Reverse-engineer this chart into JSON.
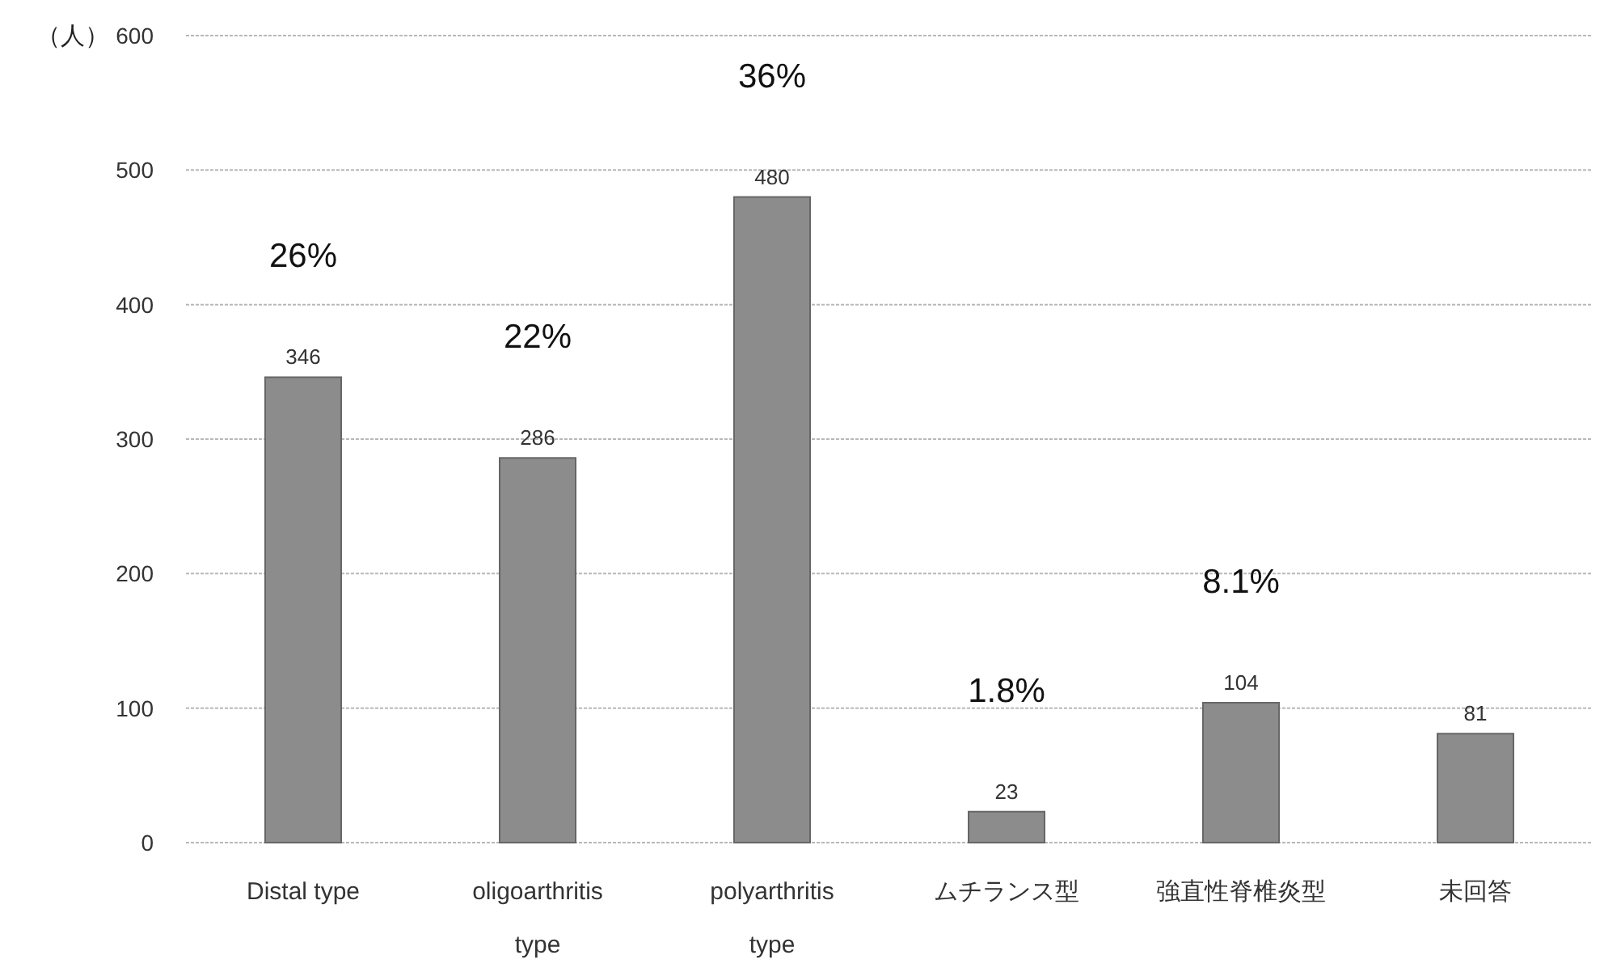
{
  "chart_data": {
    "type": "bar",
    "ylabel": "（人）",
    "categories": [
      "Distal type",
      "oligoarthritis type",
      "polyarthritis type",
      "ムチランス型",
      "強直性脊椎炎型",
      "未回答"
    ],
    "values": [
      346,
      286,
      480,
      23,
      104,
      81
    ],
    "color": "#8c8c8c",
    "ylim": [
      0,
      600
    ],
    "yticks": [
      0,
      100,
      200,
      300,
      400,
      500,
      600
    ],
    "grid": "y",
    "data_labels": true,
    "annotations": [
      "26%",
      "22%",
      "36%",
      "1.8%",
      "8.1%"
    ]
  }
}
